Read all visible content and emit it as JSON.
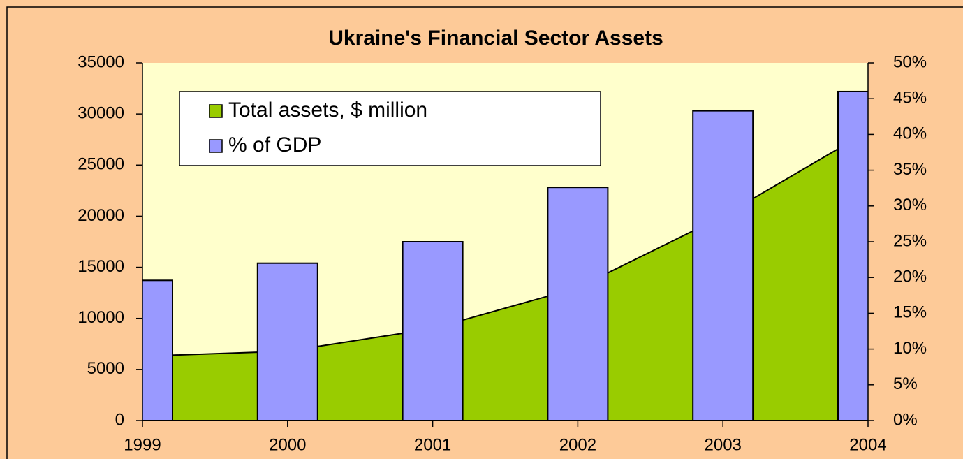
{
  "chart_data": {
    "type": "combo",
    "title": "Ukraine's Financial Sector Assets",
    "x": [
      1999,
      2000,
      2001,
      2002,
      2003,
      2004
    ],
    "xlim": [
      1999,
      2004
    ],
    "xticks": [
      1999,
      2000,
      2001,
      2002,
      2003,
      2004
    ],
    "series": [
      {
        "name": "Total assets, $ million",
        "type": "area",
        "color": "#99cc00",
        "values": [
          6300,
          6800,
          9000,
          13000,
          20000,
          28300
        ]
      },
      {
        "name": "% of GDP",
        "type": "bar",
        "axis": "y2",
        "color": "#9999ff",
        "values": [
          19.6,
          22.0,
          25.0,
          32.6,
          43.3,
          46.0
        ]
      }
    ],
    "ylim": [
      0,
      35000
    ],
    "yticks": [
      0,
      5000,
      10000,
      15000,
      20000,
      25000,
      30000,
      35000
    ],
    "y2lim": [
      0,
      50
    ],
    "y2ticks": [
      {
        "value": 0,
        "label": "0%"
      },
      {
        "value": 5,
        "label": "5%"
      },
      {
        "value": 10,
        "label": "10%"
      },
      {
        "value": 15,
        "label": "15%"
      },
      {
        "value": 20,
        "label": "20%"
      },
      {
        "value": 25,
        "label": "25%"
      },
      {
        "value": 30,
        "label": "30%"
      },
      {
        "value": 35,
        "label": "35%"
      },
      {
        "value": 40,
        "label": "40%"
      },
      {
        "value": 45,
        "label": "45%"
      },
      {
        "value": 50,
        "label": "50%"
      }
    ],
    "legend": "upper left"
  }
}
